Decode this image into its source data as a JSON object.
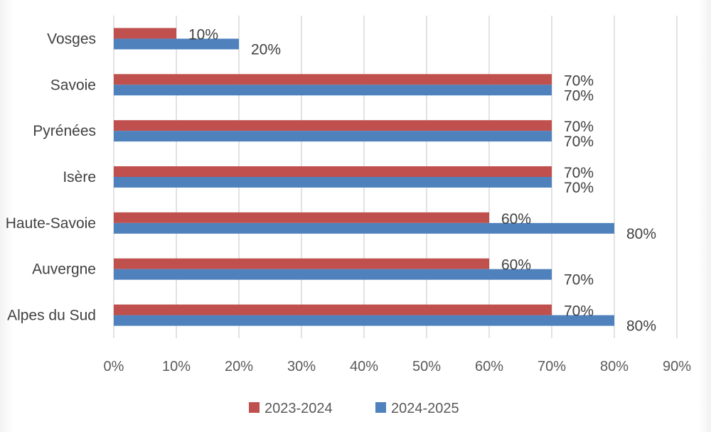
{
  "chart_data": {
    "type": "bar",
    "orientation": "horizontal",
    "categories": [
      "Vosges",
      "Savoie",
      "Pyrénées",
      "Isère",
      "Haute-Savoie",
      "Auvergne",
      "Alpes du Sud"
    ],
    "series": [
      {
        "name": "2023-2024",
        "color": "#c0504d",
        "values": [
          10,
          70,
          70,
          70,
          60,
          60,
          70
        ]
      },
      {
        "name": "2024-2025",
        "color": "#4f81bd",
        "values": [
          20,
          70,
          70,
          70,
          80,
          70,
          80
        ]
      }
    ],
    "value_suffix": "%",
    "xlim": [
      0,
      90
    ],
    "xticks": [
      0,
      10,
      20,
      30,
      40,
      50,
      60,
      70,
      80,
      90
    ],
    "xtick_labels": [
      "0%",
      "10%",
      "20%",
      "30%",
      "40%",
      "50%",
      "60%",
      "70%",
      "80%",
      "90%"
    ],
    "grid": true,
    "legend_position": "bottom",
    "gridline_color": "#d9d9d9"
  }
}
